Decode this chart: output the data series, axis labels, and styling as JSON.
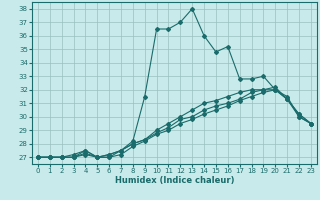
{
  "title": "",
  "xlabel": "Humidex (Indice chaleur)",
  "xlim": [
    -0.5,
    23.5
  ],
  "ylim": [
    26.5,
    38.5
  ],
  "yticks": [
    27,
    28,
    29,
    30,
    31,
    32,
    33,
    34,
    35,
    36,
    37,
    38
  ],
  "xticks": [
    0,
    1,
    2,
    3,
    4,
    5,
    6,
    7,
    8,
    9,
    10,
    11,
    12,
    13,
    14,
    15,
    16,
    17,
    18,
    19,
    20,
    21,
    22,
    23
  ],
  "background_color": "#c8eaea",
  "grid_color": "#9bbfbf",
  "line_color": "#1a6b6b",
  "line1_y": [
    27,
    27,
    27,
    27.2,
    27.5,
    27.0,
    27.2,
    27.5,
    28.2,
    31.5,
    36.5,
    36.5,
    37.0,
    38.0,
    36.0,
    34.8,
    35.2,
    32.8,
    32.8,
    33.0,
    32.0,
    31.3,
    30.0,
    29.5
  ],
  "line2_y": [
    27,
    27,
    27,
    27.0,
    27.5,
    27.0,
    27.2,
    27.5,
    28.0,
    28.3,
    29.0,
    29.5,
    30.0,
    30.5,
    31.0,
    31.2,
    31.5,
    31.8,
    32.0,
    32.0,
    32.0,
    31.5,
    30.0,
    29.5
  ],
  "line3_y": [
    27,
    27,
    27,
    27.0,
    27.3,
    27.0,
    27.0,
    27.5,
    28.0,
    28.3,
    28.8,
    29.2,
    29.8,
    30.0,
    30.5,
    30.8,
    31.0,
    31.3,
    31.8,
    32.0,
    32.2,
    31.3,
    30.2,
    29.5
  ],
  "line4_y": [
    27,
    27,
    27,
    27.0,
    27.2,
    27.0,
    27.0,
    27.2,
    27.8,
    28.2,
    28.7,
    29.0,
    29.5,
    29.8,
    30.2,
    30.5,
    30.8,
    31.2,
    31.5,
    31.8,
    32.0,
    31.3,
    30.2,
    29.5
  ]
}
